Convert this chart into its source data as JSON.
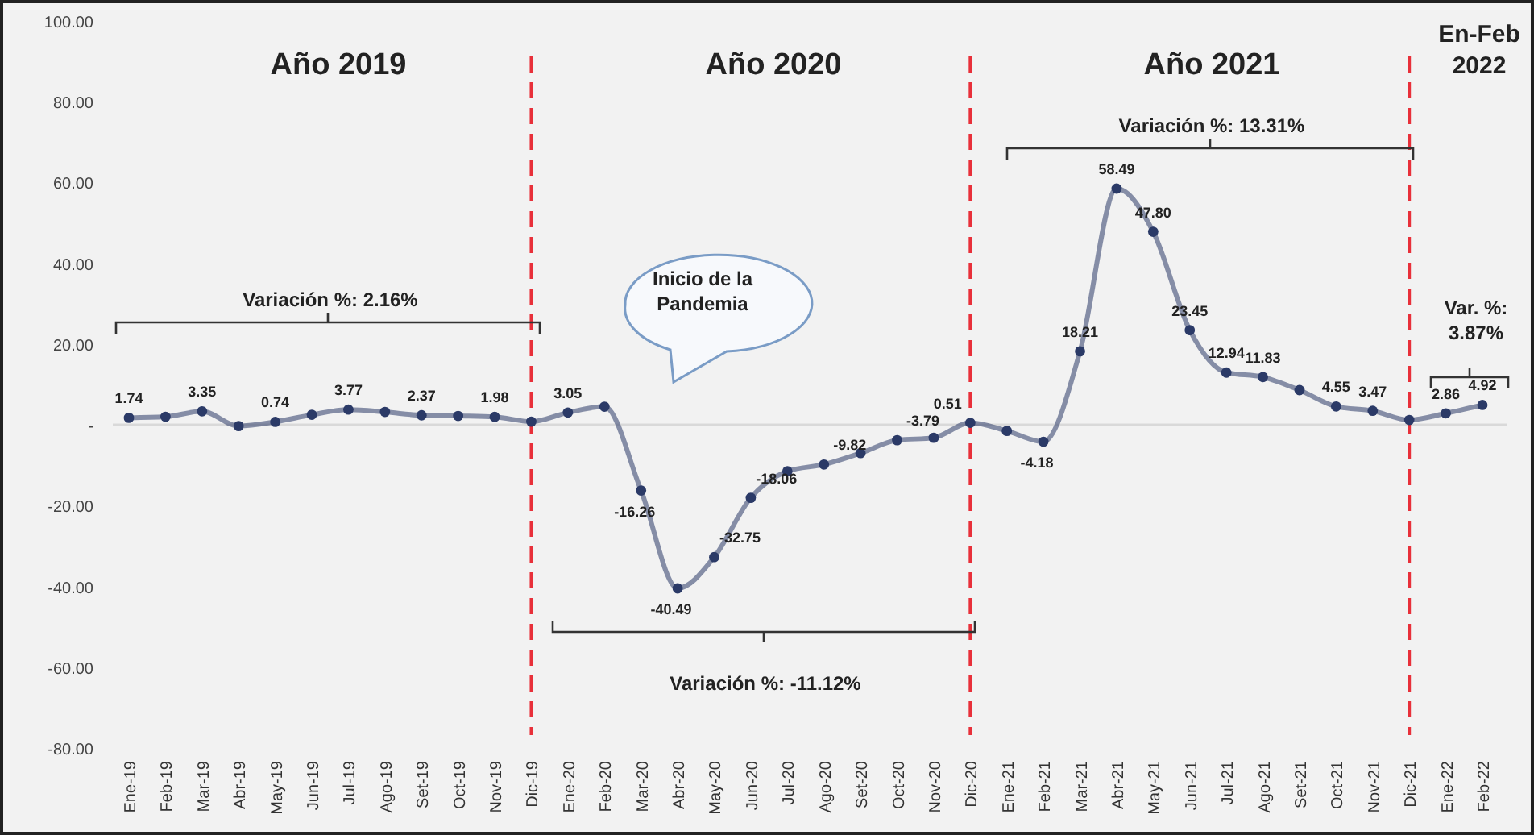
{
  "chart_data": {
    "type": "line",
    "categories": [
      "Ene-19",
      "Feb-19",
      "Mar-19",
      "Abr-19",
      "May-19",
      "Jun-19",
      "Jul-19",
      "Ago-19",
      "Set-19",
      "Oct-19",
      "Nov-19",
      "Dic-19",
      "Ene-20",
      "Feb-20",
      "Mar-20",
      "Abr-20",
      "May-20",
      "Jun-20",
      "Jul-20",
      "Ago-20",
      "Set-20",
      "Oct-20",
      "Nov-20",
      "Dic-20",
      "Ene-21",
      "Feb-21",
      "Mar-21",
      "Abr-21",
      "May-21",
      "Jun-21",
      "Jul-21",
      "Ago-21",
      "Set-21",
      "Oct-21",
      "Nov-21",
      "Dic-21",
      "Ene-22",
      "Feb-22"
    ],
    "series": [
      {
        "color": "#2b3a67",
        "values": [
          1.74,
          2.0,
          3.35,
          -0.3,
          0.74,
          2.5,
          3.77,
          3.2,
          2.37,
          2.2,
          1.98,
          0.8,
          3.05,
          4.5,
          -16.26,
          -40.49,
          -32.75,
          -18.06,
          -11.5,
          -9.82,
          -7.0,
          -3.79,
          -3.2,
          0.51,
          -1.5,
          -4.18,
          18.21,
          58.49,
          47.8,
          23.45,
          12.94,
          11.83,
          8.6,
          4.55,
          3.47,
          1.2,
          2.86,
          4.92
        ],
        "value_labels": [
          "1.74",
          null,
          "3.35",
          null,
          "0.74",
          null,
          "3.77",
          null,
          "2.37",
          null,
          "1.98",
          null,
          "3.05",
          null,
          "-16.26",
          "-40.49",
          "-32.75",
          "-18.06",
          null,
          "-9.82",
          null,
          "-3.79",
          null,
          "0.51",
          null,
          "-4.18",
          "18.21",
          "58.49",
          "47.80",
          "23.45",
          "12.94",
          "11.83",
          null,
          "4.55",
          "3.47",
          null,
          "2.86",
          "4.92"
        ]
      }
    ],
    "ylim": [
      -80,
      100
    ],
    "yticks": [
      {
        "value": 100,
        "label": "100.00"
      },
      {
        "value": 80,
        "label": "80.00"
      },
      {
        "value": 60,
        "label": "60.00"
      },
      {
        "value": 40,
        "label": "40.00"
      },
      {
        "value": 20,
        "label": "20.00"
      },
      {
        "value": 0,
        "label": "-"
      },
      {
        "value": -20,
        "label": "-20.00"
      },
      {
        "value": -40,
        "label": "-40.00"
      },
      {
        "value": -60,
        "label": "-60.00"
      },
      {
        "value": -80,
        "label": "-80.00"
      }
    ],
    "marker": "circle",
    "line_style": "solid",
    "grid": false,
    "ref_lines": [
      {
        "axis": "x",
        "value": "Dic-19",
        "color": "#e8303a",
        "line_style": "dashed"
      },
      {
        "axis": "x",
        "value": "Dic-20",
        "color": "#e8303a",
        "line_style": "dashed"
      },
      {
        "axis": "x",
        "value": "Dic-21",
        "color": "#e8303a",
        "line_style": "dashed"
      }
    ],
    "annotations": [
      "Año 2019",
      "Año 2020",
      "Año 2021",
      "En-Feb 2022",
      "Variación %: 2.16%",
      "Variación %: -11.12%",
      "Variación %: 13.31%",
      "Var. %: 3.87%",
      "Inicio de la Pandemia"
    ]
  }
}
